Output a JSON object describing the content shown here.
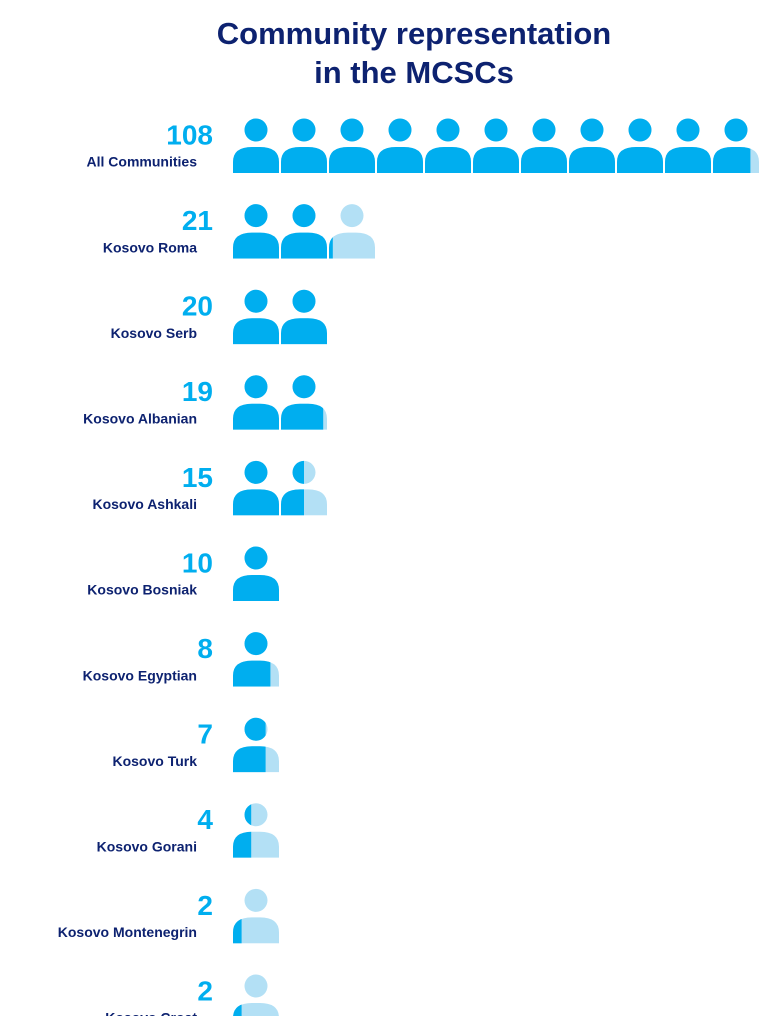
{
  "chart_data": {
    "type": "pictograph",
    "title": [
      "Community representation",
      "in the MCSCs"
    ],
    "categories": [
      "All Communities",
      "Kosovo Roma",
      "Kosovo Serb",
      "Kosovo Albanian",
      "Kosovo Ashkali",
      "Kosovo Bosniak",
      "Kosovo Egyptian",
      "Kosovo Turk",
      "Kosovo Gorani",
      "Kosovo Montenegrin",
      "Kosovo Croat"
    ],
    "values": [
      108,
      21,
      20,
      19,
      15,
      10,
      8,
      7,
      4,
      2,
      2
    ],
    "color": "#00aeef",
    "empty_color": "#b3e0f5"
  }
}
